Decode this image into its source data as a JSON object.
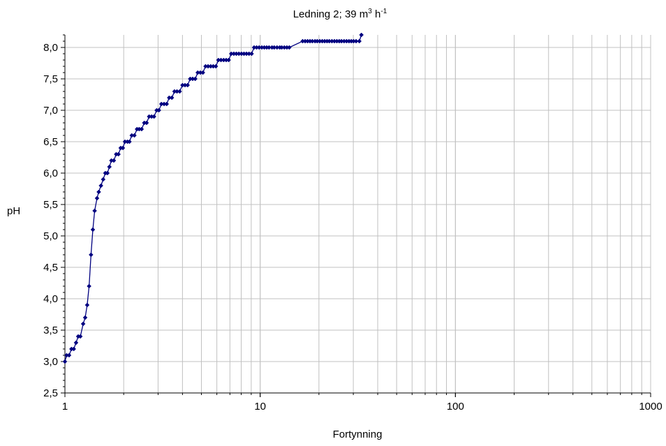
{
  "chart_data": {
    "type": "scatter",
    "title": {
      "prefix": "Ledning 2; 39 m",
      "sup1": "3",
      "mid": " h",
      "sup2": "-1"
    },
    "xlabel": "Fortynning",
    "ylabel": "pH",
    "xscale": "log",
    "xlim": [
      1,
      1000
    ],
    "ylim": [
      2.5,
      8.2
    ],
    "xticks": [
      1,
      10,
      100,
      1000
    ],
    "xtick_labels": [
      "1",
      "10",
      "100",
      "1000"
    ],
    "yticks": [
      2.5,
      3.0,
      3.5,
      4.0,
      4.5,
      5.0,
      5.5,
      6.0,
      6.5,
      7.0,
      7.5,
      8.0
    ],
    "ytick_labels": [
      "2,5",
      "3,0",
      "3,5",
      "4,0",
      "4,5",
      "5,0",
      "5,5",
      "6,0",
      "6,5",
      "7,0",
      "7,5",
      "8,0"
    ],
    "grid": true,
    "legend": "none",
    "series": [
      {
        "color": "#000080",
        "marker": "diamond",
        "line": true,
        "x": [
          1.0,
          1.02,
          1.05,
          1.08,
          1.11,
          1.14,
          1.17,
          1.2,
          1.24,
          1.27,
          1.3,
          1.33,
          1.36,
          1.39,
          1.42,
          1.46,
          1.49,
          1.53,
          1.57,
          1.61,
          1.65,
          1.69,
          1.73,
          1.78,
          1.83,
          1.88,
          1.93,
          1.98,
          2.03,
          2.09,
          2.14,
          2.2,
          2.27,
          2.34,
          2.4,
          2.47,
          2.55,
          2.62,
          2.7,
          2.78,
          2.86,
          2.95,
          3.03,
          3.12,
          3.22,
          3.32,
          3.42,
          3.53,
          3.64,
          3.75,
          3.87,
          4.0,
          4.12,
          4.25,
          4.38,
          4.51,
          4.65,
          4.79,
          4.94,
          5.09,
          5.25,
          5.41,
          5.58,
          5.75,
          5.93,
          6.11,
          6.3,
          6.5,
          6.7,
          6.9,
          7.11,
          7.33,
          7.55,
          7.78,
          8.02,
          8.26,
          8.51,
          8.77,
          9.04,
          9.31,
          9.59,
          9.88,
          10.2,
          10.5,
          10.8,
          11.1,
          11.5,
          11.8,
          12.2,
          12.6,
          12.9,
          13.3,
          13.7,
          14.1,
          16.5,
          17.0,
          17.5,
          18.0,
          18.5,
          19.1,
          19.6,
          20.2,
          20.8,
          21.4,
          22.0,
          22.6,
          23.3,
          24.0,
          24.7,
          25.4,
          26.1,
          26.9,
          27.7,
          28.5,
          29.3,
          30.1,
          31.0,
          32.2,
          33.0
        ],
        "y": [
          3.0,
          3.1,
          3.1,
          3.2,
          3.2,
          3.3,
          3.4,
          3.4,
          3.6,
          3.7,
          3.9,
          4.2,
          4.7,
          5.1,
          5.4,
          5.6,
          5.7,
          5.8,
          5.9,
          6.0,
          6.0,
          6.1,
          6.2,
          6.2,
          6.3,
          6.3,
          6.4,
          6.4,
          6.5,
          6.5,
          6.5,
          6.6,
          6.6,
          6.7,
          6.7,
          6.7,
          6.8,
          6.8,
          6.9,
          6.9,
          6.9,
          7.0,
          7.0,
          7.1,
          7.1,
          7.1,
          7.2,
          7.2,
          7.3,
          7.3,
          7.3,
          7.4,
          7.4,
          7.4,
          7.5,
          7.5,
          7.5,
          7.6,
          7.6,
          7.6,
          7.7,
          7.7,
          7.7,
          7.7,
          7.7,
          7.8,
          7.8,
          7.8,
          7.8,
          7.8,
          7.9,
          7.9,
          7.9,
          7.9,
          7.9,
          7.9,
          7.9,
          7.9,
          7.9,
          8.0,
          8.0,
          8.0,
          8.0,
          8.0,
          8.0,
          8.0,
          8.0,
          8.0,
          8.0,
          8.0,
          8.0,
          8.0,
          8.0,
          8.0,
          8.1,
          8.1,
          8.1,
          8.1,
          8.1,
          8.1,
          8.1,
          8.1,
          8.1,
          8.1,
          8.1,
          8.1,
          8.1,
          8.1,
          8.1,
          8.1,
          8.1,
          8.1,
          8.1,
          8.1,
          8.1,
          8.1,
          8.1,
          8.1,
          8.2
        ]
      }
    ]
  }
}
